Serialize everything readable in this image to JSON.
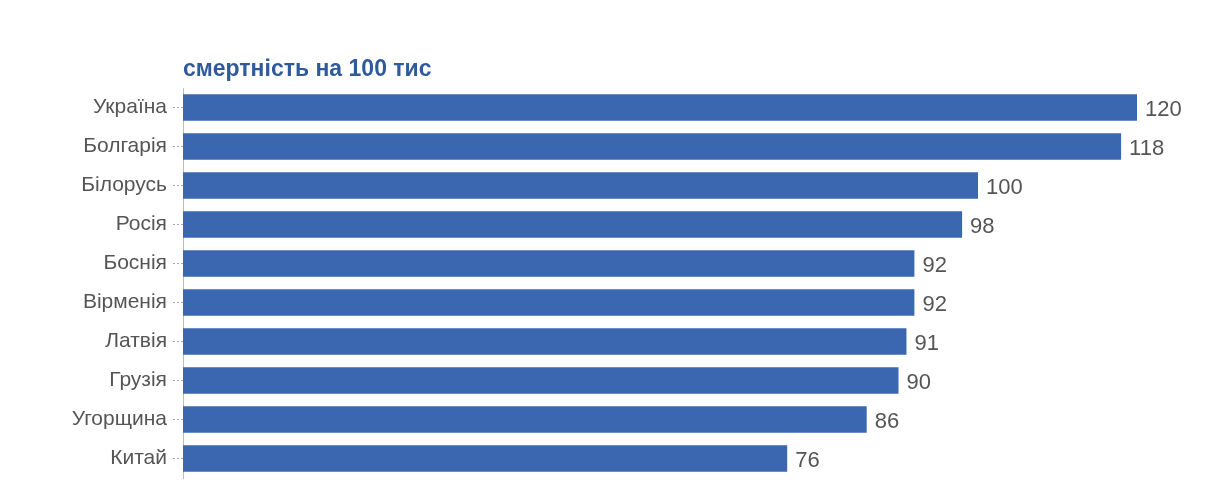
{
  "chart_data": {
    "type": "bar",
    "orientation": "horizontal",
    "title": "смертність на 100 тис",
    "categories": [
      "Україна",
      "Болгарія",
      "Білорусь",
      "Росія",
      "Боснія",
      "Вірменія",
      "Латвія",
      "Грузія",
      "Угорщина",
      "Китай"
    ],
    "values": [
      120,
      118,
      100,
      98,
      92,
      92,
      91,
      90,
      86,
      76
    ],
    "color": "#3b67b1",
    "data_labels": true
  }
}
